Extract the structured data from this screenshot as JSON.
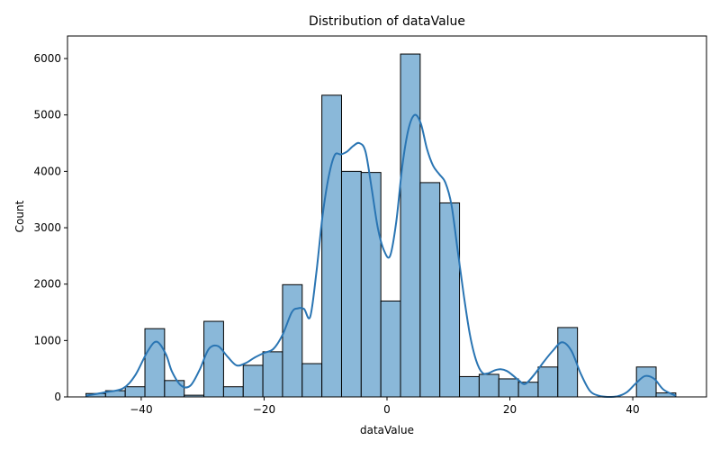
{
  "chart_data": {
    "type": "bar",
    "title": "Distribution of dataValue",
    "xlabel": "dataValue",
    "ylabel": "Count",
    "xlim": [
      -52,
      52
    ],
    "ylim": [
      0,
      6400
    ],
    "xticks": [
      -40,
      -20,
      0,
      20,
      40
    ],
    "xtick_labels": [
      "−40",
      "−20",
      "0",
      "20",
      "40"
    ],
    "yticks": [
      0,
      1000,
      2000,
      3000,
      4000,
      5000,
      6000
    ],
    "ytick_labels": [
      "0",
      "1000",
      "2000",
      "3000",
      "4000",
      "5000",
      "6000"
    ],
    "bin_edges": [
      -49,
      -45.8,
      -42.6,
      -39.4,
      -36.2,
      -33,
      -29.8,
      -26.6,
      -23.4,
      -20.2,
      -17,
      -13.8,
      -10.6,
      -7.4,
      -4.2,
      -1,
      2.2,
      5.4,
      8.6,
      11.8,
      15,
      18.2,
      21.4,
      24.6,
      27.8,
      31,
      34.2,
      37.4,
      40.6,
      43.8,
      47
    ],
    "values": [
      60,
      110,
      180,
      1210,
      290,
      30,
      1340,
      180,
      560,
      800,
      1990,
      590,
      5350,
      4000,
      3980,
      1700,
      6080,
      3800,
      3440,
      360,
      400,
      320,
      260,
      530,
      1230,
      0,
      0,
      0,
      530,
      70
    ],
    "kde": {
      "x": [
        -49,
        -46,
        -43,
        -41,
        -39,
        -37.5,
        -36,
        -35,
        -33.5,
        -32,
        -30.5,
        -29,
        -27.5,
        -26,
        -24.5,
        -23,
        -21.5,
        -20,
        -18.5,
        -17,
        -15.5,
        -14.5,
        -13.5,
        -12.5,
        -11.5,
        -10.5,
        -9.5,
        -8.5,
        -7.5,
        -6.5,
        -5.5,
        -4.5,
        -3.5,
        -2.5,
        -1.5,
        -0.5,
        0.5,
        1.5,
        2.5,
        3.5,
        4.5,
        5.5,
        6.5,
        7.5,
        8.5,
        9.5,
        10.5,
        11.5,
        12.5,
        13.5,
        14.5,
        15.5,
        16.5,
        17.5,
        18.5,
        19.5,
        20.5,
        21.5,
        22.5,
        24,
        25.5,
        27,
        28.5,
        30,
        31.5,
        33,
        34.5,
        36,
        37.5,
        39,
        40.5,
        42,
        43.5,
        45,
        47
      ],
      "y": [
        20,
        80,
        150,
        380,
        800,
        980,
        760,
        450,
        200,
        200,
        480,
        850,
        900,
        720,
        560,
        600,
        700,
        780,
        850,
        1100,
        1500,
        1570,
        1560,
        1420,
        2200,
        3200,
        3900,
        4290,
        4300,
        4350,
        4450,
        4500,
        4350,
        3700,
        3000,
        2600,
        2500,
        3100,
        4100,
        4750,
        5000,
        4850,
        4400,
        4100,
        3950,
        3800,
        3400,
        2600,
        1800,
        1100,
        650,
        430,
        420,
        470,
        490,
        460,
        380,
        290,
        230,
        400,
        620,
        820,
        970,
        820,
        420,
        110,
        20,
        0,
        10,
        80,
        240,
        370,
        320,
        130,
        20
      ]
    },
    "grid": false,
    "colors": {
      "bar_fill": "#8ab8d9",
      "bar_edge": "#000000",
      "kde_line": "#2a75b3"
    }
  }
}
